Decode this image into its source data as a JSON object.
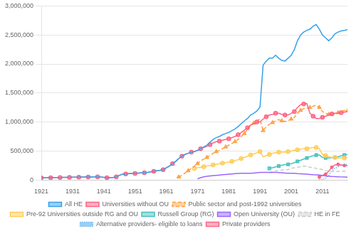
{
  "chart_data": {
    "type": "line",
    "xlim": [
      1921,
      2019
    ],
    "ylim": [
      0,
      3000000
    ],
    "xticks": [
      1921,
      1931,
      1941,
      1951,
      1961,
      1971,
      1981,
      1991,
      2001,
      2011
    ],
    "yticks": [
      0,
      {
        "value": 500000,
        "label": "500,000"
      },
      {
        "value": 1000000,
        "label": "1,000,000"
      },
      {
        "value": 1500000,
        "label": "1,500,000"
      },
      {
        "value": 2000000,
        "label": "2,000,000"
      },
      {
        "value": 2500000,
        "label": "2,500,000"
      },
      {
        "value": 3000000,
        "label": "3,000,000"
      }
    ],
    "grid": "y",
    "legend": "bottom",
    "series": [
      {
        "name": "All HE",
        "marker": "none",
        "line_style": "solid",
        "x": [
          1921,
          1922,
          1923,
          1924,
          1925,
          1926,
          1927,
          1928,
          1929,
          1930,
          1931,
          1932,
          1933,
          1934,
          1935,
          1936,
          1937,
          1938,
          1939,
          1940,
          1941,
          1942,
          1943,
          1944,
          1945,
          1946,
          1947,
          1948,
          1949,
          1950,
          1951,
          1952,
          1953,
          1954,
          1955,
          1956,
          1957,
          1958,
          1959,
          1960,
          1961,
          1962,
          1963,
          1964,
          1965,
          1966,
          1967,
          1968,
          1969,
          1970,
          1971,
          1972,
          1973,
          1974,
          1975,
          1976,
          1977,
          1978,
          1979,
          1980,
          1981,
          1982,
          1983,
          1984,
          1985,
          1986,
          1987,
          1988,
          1989,
          1990,
          1991,
          1992,
          1993,
          1994,
          1995,
          1996,
          1997,
          1998,
          1999,
          2000,
          2001,
          2002,
          2003,
          2004,
          2005,
          2006,
          2007,
          2008,
          2009,
          2010,
          2011,
          2012,
          2013,
          2014,
          2015,
          2016,
          2017,
          2018,
          2019
        ],
        "values": [
          37000,
          38000,
          39000,
          40000,
          41000,
          42000,
          43000,
          44000,
          45000,
          46000,
          47000,
          48000,
          49000,
          50000,
          51000,
          52000,
          53000,
          54000,
          55000,
          50000,
          45000,
          40000,
          38000,
          42000,
          55000,
          80000,
          100000,
          105000,
          110000,
          112000,
          113000,
          118000,
          122000,
          126000,
          130000,
          140000,
          150000,
          160000,
          168000,
          178000,
          210000,
          240000,
          280000,
          320000,
          370000,
          410000,
          440000,
          460000,
          480000,
          490000,
          510000,
          540000,
          570000,
          600000,
          650000,
          700000,
          730000,
          750000,
          780000,
          800000,
          820000,
          850000,
          880000,
          920000,
          970000,
          1020000,
          1060000,
          1120000,
          1150000,
          1190000,
          1260000,
          1980000,
          2050000,
          2100000,
          2100000,
          2150000,
          2100000,
          2060000,
          2050000,
          2100000,
          2150000,
          2250000,
          2400000,
          2500000,
          2550000,
          2580000,
          2600000,
          2650000,
          2680000,
          2600000,
          2500000,
          2450000,
          2400000,
          2450000,
          2520000,
          2550000,
          2570000,
          2580000,
          2590000
        ]
      },
      {
        "name": "Universities without OU",
        "marker": "circle",
        "line_style": "solid",
        "x": [
          1921,
          1922,
          1923,
          1924,
          1925,
          1926,
          1927,
          1928,
          1929,
          1930,
          1931,
          1932,
          1933,
          1934,
          1935,
          1936,
          1937,
          1938,
          1939,
          1940,
          1941,
          1942,
          1943,
          1944,
          1945,
          1946,
          1947,
          1948,
          1949,
          1950,
          1951,
          1952,
          1953,
          1954,
          1955,
          1956,
          1957,
          1958,
          1959,
          1960,
          1961,
          1962,
          1963,
          1964,
          1965,
          1966,
          1967,
          1968,
          1969,
          1970,
          1971,
          1972,
          1973,
          1974,
          1975,
          1976,
          1977,
          1978,
          1979,
          1980,
          1981,
          1982,
          1983,
          1984,
          1985,
          1986,
          1987,
          1988,
          1989,
          1990,
          1991,
          1992,
          1993,
          1994,
          1995,
          1996,
          1997,
          1998,
          1999,
          2000,
          2001,
          2002,
          2003,
          2004,
          2005,
          2006,
          2007,
          2008,
          2009,
          2010,
          2011,
          2012,
          2013,
          2014,
          2015,
          2016,
          2017,
          2018,
          2019
        ],
        "values": [
          37000,
          38000,
          39000,
          40000,
          41000,
          42000,
          43000,
          44000,
          45000,
          46000,
          47000,
          48000,
          49000,
          50000,
          51000,
          52000,
          53000,
          54000,
          55000,
          50000,
          45000,
          40000,
          38000,
          42000,
          55000,
          80000,
          100000,
          105000,
          110000,
          112000,
          113000,
          118000,
          122000,
          126000,
          130000,
          140000,
          150000,
          160000,
          168000,
          178000,
          210000,
          240000,
          280000,
          320000,
          370000,
          410000,
          440000,
          460000,
          480000,
          490000,
          510000,
          540000,
          560000,
          580000,
          610000,
          640000,
          660000,
          670000,
          685000,
          700000,
          710000,
          730000,
          750000,
          780000,
          820000,
          860000,
          900000,
          950000,
          970000,
          1000000,
          1000000,
          1050000,
          1090000,
          1120000,
          1130000,
          1150000,
          1150000,
          1130000,
          1120000,
          1120000,
          1150000,
          1180000,
          1250000,
          1300000,
          1310000,
          1320000,
          1150000,
          1100000,
          1060000,
          1060000,
          1080000,
          1100000,
          1120000,
          1140000,
          1150000,
          1150000,
          1160000,
          1170000,
          1180000
        ]
      },
      {
        "name": "Public sector and post-1992 universities",
        "marker": "triangle",
        "line_style": "dashed",
        "x": [
          1965,
          1966,
          1967,
          1968,
          1969,
          1970,
          1971,
          1972,
          1973,
          1974,
          1975,
          1976,
          1977,
          1978,
          1979,
          1980,
          1981,
          1982,
          1983,
          1984,
          1985,
          1986,
          1987,
          1988,
          1989,
          1990,
          1991,
          1992,
          1993,
          1994,
          1995,
          1996,
          1997,
          1998,
          1999,
          2000,
          2001,
          2002,
          2003,
          2004,
          2005,
          2006,
          2007,
          2008,
          2009,
          2010,
          2011,
          2012,
          2013,
          2014,
          2015,
          2016,
          2017,
          2018,
          2019
        ],
        "values": [
          50000,
          80000,
          120000,
          160000,
          200000,
          240000,
          280000,
          330000,
          360000,
          390000,
          420000,
          460000,
          490000,
          510000,
          540000,
          570000,
          600000,
          630000,
          660000,
          700000,
          750000,
          800000,
          870000,
          940000,
          980000,
          1020000,
          1050000,
          850000,
          920000,
          960000,
          990000,
          1020000,
          1040000,
          1020000,
          1010000,
          1020000,
          1050000,
          1080000,
          1150000,
          1200000,
          1230000,
          1240000,
          1250000,
          1270000,
          1290000,
          1250000,
          1180000,
          1150000,
          1130000,
          1120000,
          1140000,
          1160000,
          1180000,
          1200000,
          1190000
        ]
      },
      {
        "name": "Pre-92 Universities outside RG and OU",
        "marker": "circle",
        "line_style": "solid",
        "x": [
          1970,
          1971,
          1972,
          1973,
          1974,
          1975,
          1976,
          1977,
          1978,
          1979,
          1980,
          1981,
          1982,
          1983,
          1984,
          1985,
          1986,
          1987,
          1988,
          1989,
          1990,
          1991,
          1992,
          1993,
          1994,
          1995,
          1996,
          1997,
          1998,
          1999,
          2000,
          2001,
          2002,
          2003,
          2004,
          2005,
          2006,
          2007,
          2008,
          2009,
          2010,
          2011,
          2012,
          2013,
          2014,
          2015,
          2016,
          2017,
          2018,
          2019
        ],
        "values": [
          200000,
          210000,
          220000,
          230000,
          240000,
          250000,
          260000,
          270000,
          280000,
          290000,
          300000,
          310000,
          320000,
          330000,
          350000,
          370000,
          390000,
          410000,
          430000,
          450000,
          470000,
          490000,
          400000,
          420000,
          440000,
          460000,
          470000,
          480000,
          480000,
          480000,
          490000,
          500000,
          510000,
          520000,
          530000,
          540000,
          540000,
          550000,
          560000,
          560000,
          540000,
          440000,
          420000,
          400000,
          390000,
          390000,
          380000,
          380000,
          380000,
          390000
        ]
      },
      {
        "name": "Russell Group (RG)",
        "marker": "square",
        "line_style": "solid",
        "x": [
          1994,
          1995,
          1996,
          1997,
          1998,
          1999,
          2000,
          2001,
          2002,
          2003,
          2004,
          2005,
          2006,
          2007,
          2008,
          2009,
          2010,
          2011,
          2012,
          2013,
          2014,
          2015,
          2016,
          2017,
          2018,
          2019
        ],
        "values": [
          200000,
          210000,
          225000,
          240000,
          255000,
          265000,
          270000,
          280000,
          300000,
          320000,
          340000,
          360000,
          380000,
          400000,
          420000,
          430000,
          430000,
          390000,
          380000,
          380000,
          385000,
          390000,
          400000,
          415000,
          430000,
          440000
        ]
      },
      {
        "name": "Open University (OU)",
        "marker": "none",
        "line_style": "solid",
        "x": [
          1971,
          1972,
          1973,
          1974,
          1975,
          1976,
          1977,
          1978,
          1979,
          1980,
          1981,
          1982,
          1983,
          1984,
          1985,
          1986,
          1987,
          1988,
          1989,
          1990,
          1991,
          1992,
          1993,
          1994,
          1995,
          1996,
          1997,
          1998,
          1999,
          2000,
          2001,
          2002,
          2003,
          2004,
          2005,
          2006,
          2007,
          2008,
          2009,
          2010,
          2011,
          2012,
          2013,
          2014,
          2015,
          2016,
          2017,
          2018,
          2019
        ],
        "values": [
          20000,
          40000,
          55000,
          65000,
          70000,
          75000,
          80000,
          85000,
          90000,
          95000,
          100000,
          105000,
          110000,
          112000,
          115000,
          115000,
          115000,
          115000,
          120000,
          125000,
          130000,
          130000,
          130000,
          130000,
          130000,
          130000,
          128000,
          125000,
          120000,
          115000,
          115000,
          115000,
          110000,
          108000,
          105000,
          100000,
          95000,
          90000,
          88000,
          85000,
          80000,
          70000,
          65000,
          60000,
          58000,
          55000,
          53000,
          50000,
          48000
        ]
      },
      {
        "name": "HE in FE",
        "marker": "none",
        "line_style": "dashed",
        "x": [
          1994,
          1995,
          1996,
          1997,
          1998,
          1999,
          2000,
          2001,
          2002,
          2003,
          2004,
          2005,
          2006,
          2007,
          2008,
          2009,
          2010,
          2011,
          2012,
          2013,
          2014,
          2015,
          2016,
          2017,
          2018,
          2019
        ],
        "values": [
          120000,
          140000,
          155000,
          165000,
          170000,
          175000,
          180000,
          200000,
          210000,
          220000,
          230000,
          240000,
          235000,
          220000,
          210000,
          200000,
          190000,
          180000,
          160000,
          150000,
          145000,
          145000,
          145000,
          148000,
          150000,
          155000
        ]
      },
      {
        "name": "Alternative providers- eligible to loans",
        "marker": "none",
        "line_style": "dotted",
        "x": [
          2010,
          2011,
          2012,
          2013,
          2014,
          2015,
          2016,
          2017,
          2018,
          2019
        ],
        "values": [
          5000,
          10000,
          30000,
          80000,
          150000,
          200000,
          230000,
          250000,
          260000,
          270000
        ]
      },
      {
        "name": "Private providers",
        "marker": "star",
        "line_style": "solid",
        "x": [
          2010,
          2011,
          2012,
          2013,
          2014,
          2015,
          2016,
          2017,
          2018,
          2019
        ],
        "values": [
          50000,
          80000,
          100000,
          150000,
          220000,
          260000,
          270000,
          260000,
          250000,
          245000
        ]
      }
    ]
  }
}
